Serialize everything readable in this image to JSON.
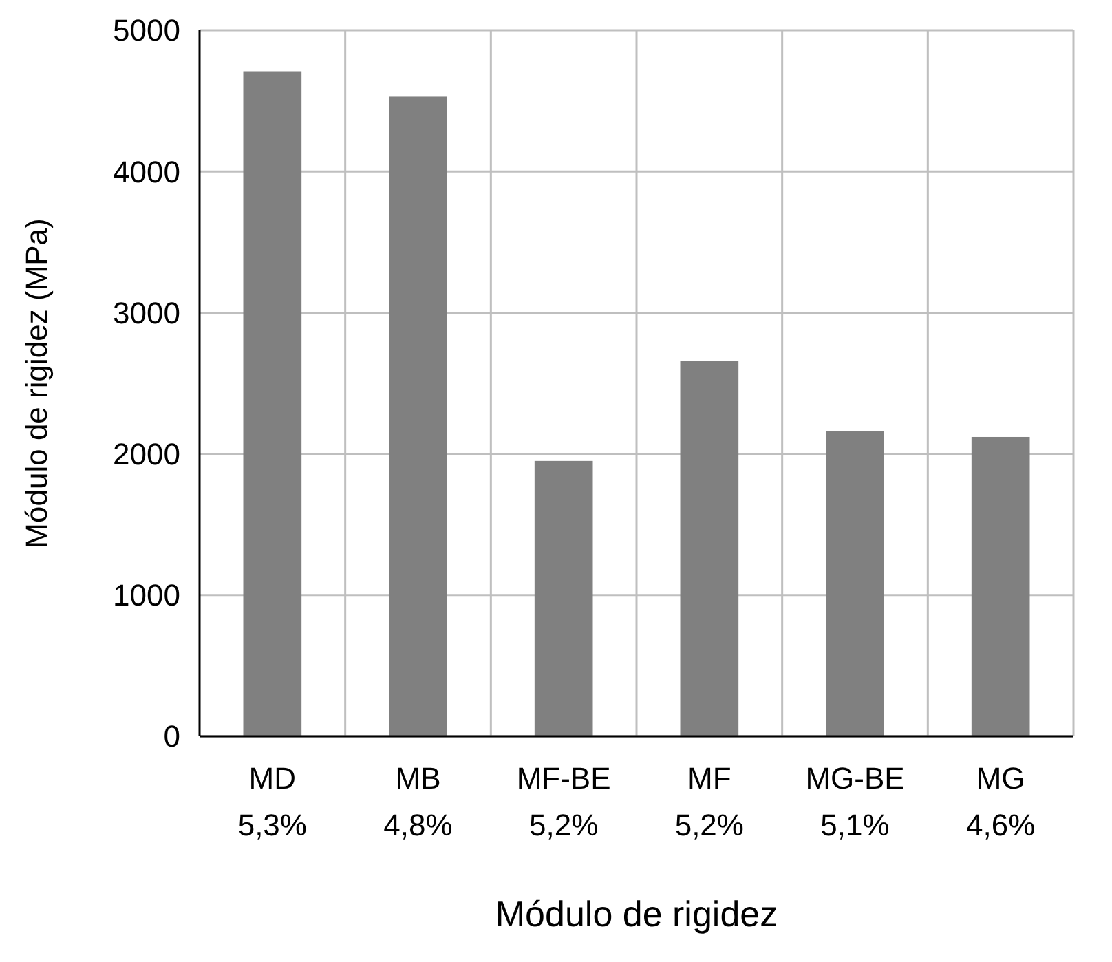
{
  "chart_data": {
    "type": "bar",
    "xlabel": "Módulo de rigidez",
    "ylabel": "Módulo de rigidez (MPa)",
    "categories": [
      "MD\n5,3%",
      "MB\n4,8%",
      "MF-BE\n5,2%",
      "MF\n5,2%",
      "MG-BE\n5,1%",
      "MG\n4,6%"
    ],
    "values": [
      4710,
      4530,
      1950,
      2660,
      2160,
      2120
    ],
    "color": "#808080",
    "ylim": [
      0,
      5000
    ],
    "yticks": [
      0,
      1000,
      2000,
      3000,
      4000,
      5000
    ],
    "grid": true
  }
}
